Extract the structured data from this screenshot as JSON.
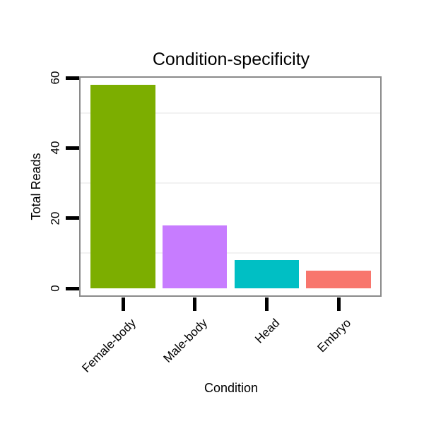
{
  "chart_data": {
    "type": "bar",
    "title": "Condition-specificity",
    "xlabel": "Condition",
    "ylabel": "Total Reads",
    "categories": [
      "Female-body",
      "Male-body",
      "Head",
      "Embryo"
    ],
    "values": [
      58,
      18,
      8,
      5
    ],
    "bar_colors": [
      "#7CAE00",
      "#C77CFF",
      "#00BFC4",
      "#F8766D"
    ],
    "yticks": [
      0,
      20,
      40,
      60
    ],
    "ytick_labels": [
      "0",
      "20",
      "40",
      "60"
    ],
    "ylim": [
      0,
      60
    ],
    "minor_gridlines": [
      10,
      30,
      50
    ],
    "grid": "faint horizontal minor gridlines only",
    "legend": "none",
    "x_label_rotation_deg": 45,
    "panel_border_color": "#8A8A8A",
    "tick_color": "#000000",
    "text_color": "#000000",
    "background_color": "#FFFFFF"
  }
}
